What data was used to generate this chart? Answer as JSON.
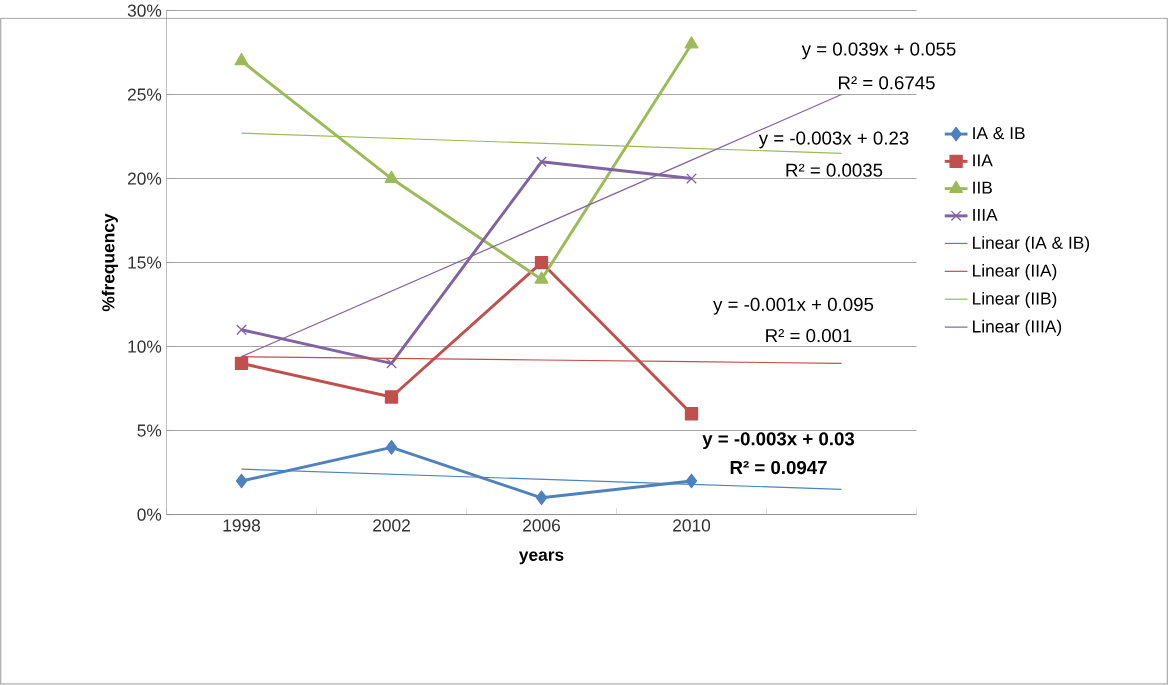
{
  "chart_data": {
    "type": "line",
    "xlabel": "years",
    "ylabel": "%frequency",
    "categories": [
      "1998",
      "2002",
      "2006",
      "2010",
      null
    ],
    "series": [
      {
        "name": "IA & IB",
        "color": "#4f81bd",
        "marker": "diamond",
        "values": [
          2,
          4,
          1,
          2,
          null
        ]
      },
      {
        "name": "IIA",
        "color": "#c0504d",
        "marker": "square",
        "values": [
          9,
          7,
          15,
          6,
          null
        ]
      },
      {
        "name": "IIB",
        "color": "#9bbb59",
        "marker": "triangle",
        "values": [
          27,
          20,
          14,
          28,
          null
        ]
      },
      {
        "name": "IIIA",
        "color": "#8064a2",
        "marker": "cross",
        "values": [
          11,
          9,
          21,
          20,
          null
        ]
      },
      {
        "name": "Linear (IA & IB)",
        "color": "#4f81bd",
        "marker": "none",
        "values": [
          2.7,
          2.4,
          2.1,
          1.8,
          1.5
        ]
      },
      {
        "name": "Linear (IIA)",
        "color": "#c0504d",
        "marker": "none",
        "values": [
          9.4,
          9.3,
          9.2,
          9.1,
          9.0
        ]
      },
      {
        "name": "Linear (IIB)",
        "color": "#9bbb59",
        "marker": "none",
        "values": [
          22.7,
          22.4,
          22.1,
          21.8,
          21.5
        ]
      },
      {
        "name": "Linear (IIIA)",
        "color": "#8064a2",
        "marker": "none",
        "values": [
          9.4,
          13.3,
          17.2,
          21.1,
          25.0
        ]
      }
    ],
    "ylim": [
      0,
      30
    ],
    "yticks": [
      {
        "value": 0,
        "label": "0%"
      },
      {
        "value": 5,
        "label": "5%"
      },
      {
        "value": 10,
        "label": "10%"
      },
      {
        "value": 15,
        "label": "15%"
      },
      {
        "value": 20,
        "label": "20%"
      },
      {
        "value": 25,
        "label": "25%"
      },
      {
        "value": 30,
        "label": "30%"
      }
    ],
    "grid": "y",
    "legend": "right",
    "annotations": [
      "y = 0.039x + 0.055",
      "R² = 0.6745",
      "y = -0.003x + 0.23",
      "R² = 0.0035",
      "y = -0.001x + 0.095",
      "R² = 0.001",
      "y = -0.003x + 0.03",
      "R² = 0.0947"
    ]
  }
}
